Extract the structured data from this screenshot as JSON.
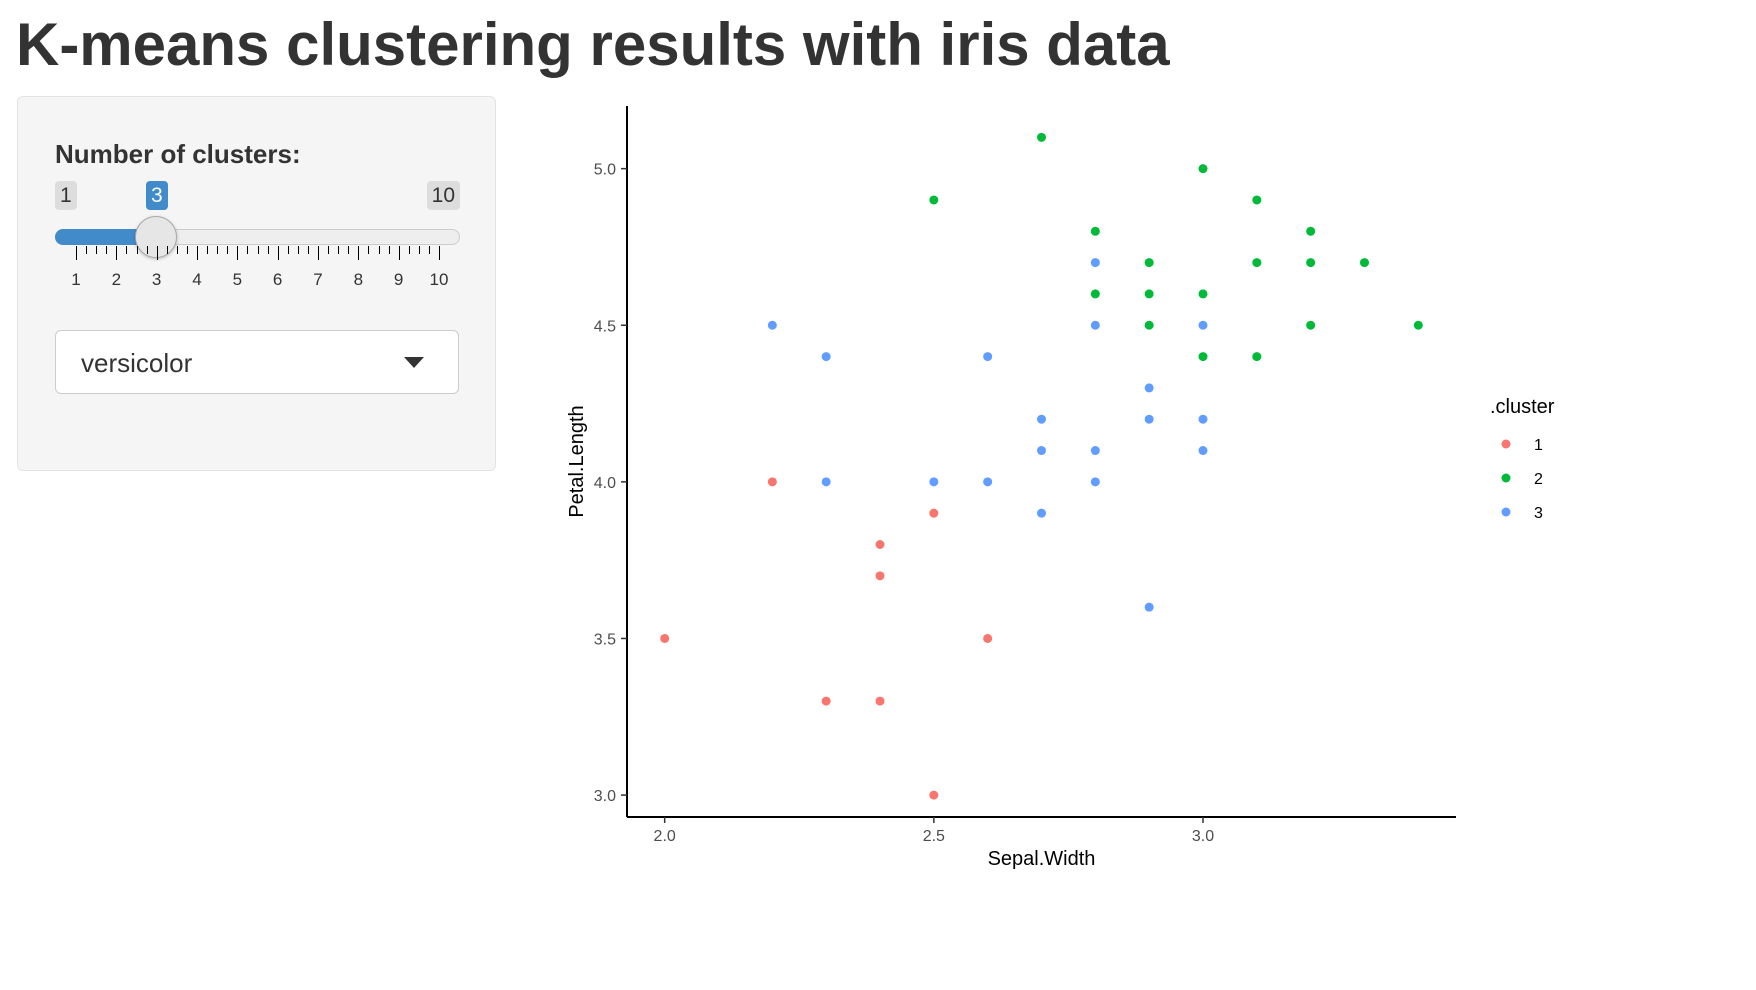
{
  "page": {
    "title": "K-means clustering results with iris data"
  },
  "controls": {
    "clusters_label": "Number of clusters:",
    "slider": {
      "min": 1,
      "max": 10,
      "value": 3,
      "min_label": "1",
      "max_label": "10",
      "value_label": "3",
      "tick_labels": [
        "1",
        "2",
        "3",
        "4",
        "5",
        "6",
        "7",
        "8",
        "9",
        "10"
      ]
    },
    "species_select": {
      "value": "versicolor"
    }
  },
  "colors": {
    "accent": "#428bca",
    "cluster_1": "#F8766D",
    "cluster_2": "#00BA38",
    "cluster_3": "#619CFF"
  },
  "chart_data": {
    "type": "scatter",
    "xlabel": "Sepal.Width",
    "ylabel": "Petal.Length",
    "xlim": [
      1.93,
      3.47
    ],
    "ylim": [
      2.93,
      5.2
    ],
    "xticks": [
      2.0,
      2.5,
      3.0
    ],
    "yticks": [
      3.0,
      3.5,
      4.0,
      4.5,
      5.0
    ],
    "xtick_labels": [
      "2.0",
      "2.5",
      "3.0"
    ],
    "ytick_labels": [
      "3.0",
      "3.5",
      "4.0",
      "4.5",
      "5.0"
    ],
    "grid": false,
    "legend": {
      "title": ".cluster",
      "position": "right"
    },
    "series": [
      {
        "name": "1",
        "color": "#F8766D",
        "points": [
          [
            2.0,
            3.5
          ],
          [
            2.2,
            4.0
          ],
          [
            2.3,
            3.3
          ],
          [
            2.4,
            3.3
          ],
          [
            2.4,
            3.7
          ],
          [
            2.4,
            3.8
          ],
          [
            2.5,
            3.9
          ],
          [
            2.5,
            3.0
          ],
          [
            2.6,
            3.5
          ]
        ]
      },
      {
        "name": "2",
        "color": "#00BA38",
        "points": [
          [
            2.5,
            4.9
          ],
          [
            2.7,
            5.1
          ],
          [
            2.8,
            4.8
          ],
          [
            2.8,
            4.6
          ],
          [
            2.9,
            4.7
          ],
          [
            2.9,
            4.6
          ],
          [
            2.9,
            4.5
          ],
          [
            3.0,
            5.0
          ],
          [
            3.0,
            4.6
          ],
          [
            3.0,
            4.4
          ],
          [
            3.1,
            4.9
          ],
          [
            3.1,
            4.7
          ],
          [
            3.1,
            4.4
          ],
          [
            3.2,
            4.8
          ],
          [
            3.2,
            4.7
          ],
          [
            3.2,
            4.5
          ],
          [
            3.3,
            4.7
          ],
          [
            3.4,
            4.5
          ]
        ]
      },
      {
        "name": "3",
        "color": "#619CFF",
        "points": [
          [
            2.2,
            4.5
          ],
          [
            2.3,
            4.4
          ],
          [
            2.3,
            4.0
          ],
          [
            2.5,
            4.0
          ],
          [
            2.6,
            4.4
          ],
          [
            2.6,
            4.0
          ],
          [
            2.7,
            4.2
          ],
          [
            2.7,
            4.1
          ],
          [
            2.7,
            3.9
          ],
          [
            2.8,
            4.7
          ],
          [
            2.8,
            4.5
          ],
          [
            2.8,
            4.1
          ],
          [
            2.8,
            4.0
          ],
          [
            2.9,
            4.3
          ],
          [
            2.9,
            4.2
          ],
          [
            2.9,
            3.6
          ],
          [
            3.0,
            4.5
          ],
          [
            3.0,
            4.2
          ],
          [
            3.0,
            4.1
          ]
        ]
      }
    ]
  }
}
